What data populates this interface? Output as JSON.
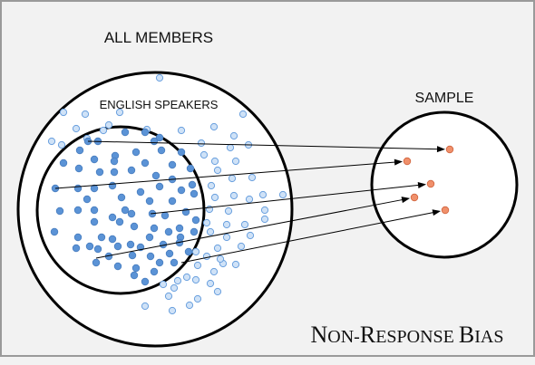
{
  "diagram": {
    "population_label": "ALL MEMBERS",
    "subgroup_label": "ENGLISH SPEAKERS",
    "sample_label": "SAMPLE",
    "title_main_1": "N",
    "title_small_1": "ON-",
    "title_main_2": "R",
    "title_small_2": "ESPONSE",
    "title_main_3": "B",
    "title_small_3": "IAS"
  },
  "colors": {
    "background": "#f2f2f2",
    "frame_border": "#9a9a9a",
    "circle_stroke": "#000000",
    "filled_dot": "#5b93d6",
    "hollow_dot_fill": "#cfe2f7",
    "hollow_dot_stroke": "#6aa0de",
    "sample_dot": "#f0906b",
    "sample_dot_stroke": "#d0643e"
  }
}
